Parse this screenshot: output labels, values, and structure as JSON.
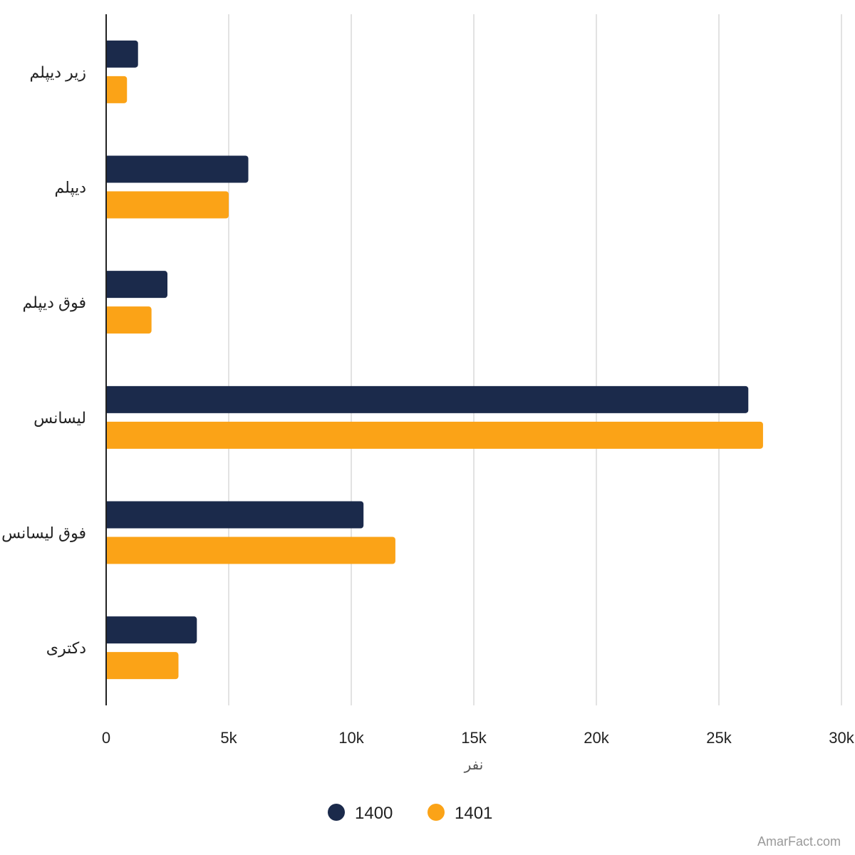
{
  "chart_data": {
    "type": "bar",
    "orientation": "horizontal",
    "categories": [
      "زیر دیپلم",
      "دیپلم",
      "فوق دیپلم",
      "لیسانس",
      "فوق لیسانس",
      "دکتری"
    ],
    "series": [
      {
        "name": "1400",
        "color": "#1b2a4b",
        "values": [
          1300,
          5800,
          2500,
          26200,
          10500,
          3700
        ]
      },
      {
        "name": "1401",
        "color": "#fba317",
        "values": [
          850,
          5000,
          1850,
          26800,
          11800,
          2950
        ]
      }
    ],
    "xlim": [
      0,
      30000
    ],
    "xticks": [
      0,
      5000,
      10000,
      15000,
      20000,
      25000,
      30000
    ],
    "xtick_labels": [
      "0",
      "5k",
      "10k",
      "15k",
      "20k",
      "25k",
      "30k"
    ],
    "xlabel": "نفر",
    "grid": true,
    "legend_position": "bottom-center"
  },
  "credit": "AmarFact.com"
}
